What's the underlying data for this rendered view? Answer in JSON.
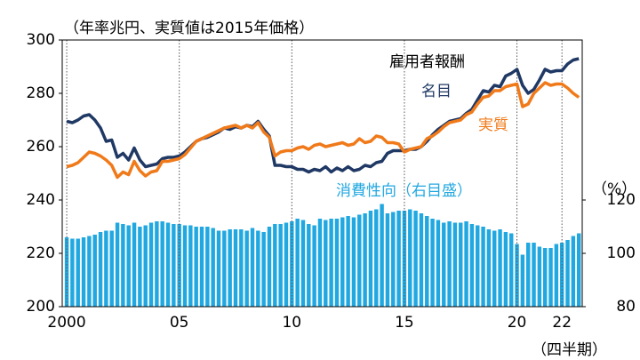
{
  "chart_data": {
    "type": "combo",
    "subtitle": "（年率兆円、実質値は2015年価格）",
    "annotations": [
      "雇用者報酬",
      "名目",
      "実質",
      "消費性向（右目盛）"
    ],
    "y2_unit": "（%）",
    "x_unit": "（四半期）",
    "x": [
      2000,
      2000.25,
      2000.5,
      2000.75,
      2001,
      2001.25,
      2001.5,
      2001.75,
      2002,
      2002.25,
      2002.5,
      2002.75,
      2003,
      2003.25,
      2003.5,
      2003.75,
      2004,
      2004.25,
      2004.5,
      2004.75,
      2005,
      2005.25,
      2005.5,
      2005.75,
      2006,
      2006.25,
      2006.5,
      2006.75,
      2007,
      2007.25,
      2007.5,
      2007.75,
      2008,
      2008.25,
      2008.5,
      2008.75,
      2009,
      2009.25,
      2009.5,
      2009.75,
      2010,
      2010.25,
      2010.5,
      2010.75,
      2011,
      2011.25,
      2011.5,
      2011.75,
      2012,
      2012.25,
      2012.5,
      2012.75,
      2013,
      2013.25,
      2013.5,
      2013.75,
      2014,
      2014.25,
      2014.5,
      2014.75,
      2015,
      2015.25,
      2015.5,
      2015.75,
      2016,
      2016.25,
      2016.5,
      2016.75,
      2017,
      2017.25,
      2017.5,
      2017.75,
      2018,
      2018.25,
      2018.5,
      2018.75,
      2019,
      2019.25,
      2019.5,
      2019.75,
      2020,
      2020.25,
      2020.5,
      2020.75,
      2021,
      2021.25,
      2021.5,
      2021.75,
      2022,
      2022.25,
      2022.5,
      2022.75
    ],
    "series": [
      {
        "name": "名目",
        "color": "#1f3864",
        "kind": "line",
        "values": [
          269.5,
          269,
          270,
          271.5,
          272,
          270,
          267,
          262,
          262.5,
          256,
          257.5,
          255,
          259.5,
          255,
          252.5,
          253,
          253.5,
          255.5,
          256,
          256,
          256.5,
          258,
          260,
          262,
          263,
          263.5,
          264.5,
          265.5,
          267,
          266.5,
          267.5,
          267,
          268,
          267.5,
          269.5,
          266.5,
          264,
          253,
          253,
          252.5,
          252.5,
          251.5,
          251.5,
          250.5,
          251.5,
          251,
          252.5,
          250.5,
          252,
          251,
          252.5,
          251,
          251.5,
          253,
          252.5,
          254,
          254.5,
          257.5,
          258.5,
          258.5,
          258.5,
          259,
          259,
          260,
          262,
          264.5,
          266.5,
          268,
          269.5,
          270,
          270.5,
          272.5,
          274,
          277.5,
          281,
          280.5,
          283,
          282.5,
          286.5,
          287.5,
          289,
          283,
          280,
          281.5,
          285,
          289,
          288,
          288.5,
          288.5,
          291,
          292.5,
          293
        ]
      },
      {
        "name": "実質",
        "color": "#f07a1a",
        "kind": "line",
        "values": [
          252.5,
          253,
          254,
          256,
          258,
          257.5,
          256.5,
          255,
          253,
          248.5,
          250.5,
          249.5,
          254.5,
          251,
          249,
          250.5,
          251,
          254.5,
          254.5,
          255,
          255.5,
          257,
          259.5,
          262,
          263,
          264,
          265,
          266,
          267,
          267.5,
          268,
          267,
          268,
          267,
          269,
          265.5,
          263.5,
          256.5,
          258,
          258.5,
          258.5,
          259.5,
          260,
          259,
          260.5,
          261,
          260,
          260.5,
          261,
          261.5,
          260.5,
          261,
          263,
          261.5,
          262,
          264,
          263.5,
          261.5,
          261.5,
          261,
          258,
          259,
          259.5,
          260,
          263,
          264,
          265.5,
          267.5,
          269,
          269.5,
          270,
          272,
          273,
          276,
          278.5,
          279,
          281,
          281,
          282.5,
          283,
          283.5,
          275,
          276,
          280,
          282,
          284,
          283,
          283.5,
          283.5,
          282,
          280,
          278.5
        ]
      },
      {
        "name": "消費性向",
        "color": "#21a8e0",
        "kind": "bar",
        "axis": "y2",
        "values": [
          106,
          105.5,
          105.5,
          106,
          106.5,
          107,
          108,
          108.5,
          108.5,
          111.5,
          111,
          110.5,
          111.5,
          110,
          110.5,
          111.5,
          112,
          112,
          111.5,
          111,
          111,
          110.5,
          110.5,
          110,
          110,
          110,
          109.5,
          108.5,
          108.5,
          109,
          109,
          109,
          108.5,
          109.5,
          108.5,
          108,
          110,
          111,
          111,
          111.5,
          112,
          113,
          112.5,
          111,
          110.5,
          113,
          112.5,
          113,
          113,
          113.5,
          114,
          113.5,
          114.5,
          115,
          116,
          116.5,
          118.5,
          115,
          115.5,
          116,
          116,
          116.5,
          116,
          115,
          114,
          113,
          112.5,
          111.5,
          112,
          111.5,
          111.5,
          112,
          111,
          110.5,
          110,
          109,
          108.5,
          109,
          108,
          107.5,
          103.5,
          99.5,
          104,
          104,
          102.5,
          102,
          102,
          103.5,
          104,
          105,
          106.5,
          107.5
        ]
      }
    ],
    "xlim": [
      1999.8,
      2022.9
    ],
    "xticks": [
      {
        "value": 2000,
        "label": "2000"
      },
      {
        "value": 2005,
        "label": "05"
      },
      {
        "value": 2010,
        "label": "10"
      },
      {
        "value": 2015,
        "label": "15"
      },
      {
        "value": 2020,
        "label": "20"
      },
      {
        "value": 2022,
        "label": "22"
      }
    ],
    "ylim": [
      200,
      300
    ],
    "yticks": [
      200,
      220,
      240,
      260,
      280,
      300
    ],
    "y2lim": [
      80,
      180
    ],
    "y2ticks": [
      80,
      100,
      120
    ],
    "grid": "x"
  }
}
